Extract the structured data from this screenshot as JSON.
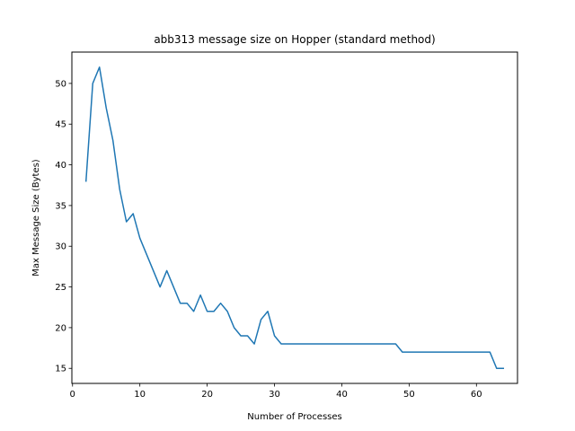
{
  "chart_data": {
    "type": "line",
    "title": "abb313 message size on Hopper (standard method)",
    "xlabel": "Number of Processes",
    "ylabel": "Max Message Size (Bytes)",
    "xlim": [
      -0.1,
      66.1
    ],
    "ylim": [
      13.15,
      53.85
    ],
    "xticks": [
      0,
      10,
      20,
      30,
      40,
      50,
      60
    ],
    "yticks": [
      15,
      20,
      25,
      30,
      35,
      40,
      45,
      50
    ],
    "grid": false,
    "line_color": "#1f77b4",
    "series": [
      {
        "x": [
          2,
          3,
          4,
          5,
          6,
          7,
          8,
          9,
          10,
          11,
          12,
          13,
          14,
          15,
          16,
          17,
          18,
          19,
          20,
          21,
          22,
          23,
          24,
          25,
          26,
          27,
          28,
          29,
          30,
          31,
          32,
          33,
          34,
          35,
          36,
          37,
          38,
          39,
          40,
          41,
          42,
          43,
          44,
          45,
          46,
          47,
          48,
          49,
          50,
          51,
          52,
          53,
          54,
          55,
          56,
          57,
          58,
          59,
          60,
          61,
          62,
          63,
          64
        ],
        "values": [
          38,
          50,
          52,
          47,
          43,
          37,
          33,
          34,
          31,
          29,
          27,
          25,
          27,
          25,
          23,
          23,
          22,
          24,
          22,
          22,
          23,
          22,
          20,
          19,
          19,
          18,
          21,
          22,
          19,
          18,
          18,
          18,
          18,
          18,
          18,
          18,
          18,
          18,
          18,
          18,
          18,
          18,
          18,
          18,
          18,
          18,
          18,
          17,
          17,
          17,
          17,
          17,
          17,
          17,
          17,
          17,
          17,
          17,
          17,
          17,
          17,
          15,
          15
        ]
      }
    ]
  }
}
